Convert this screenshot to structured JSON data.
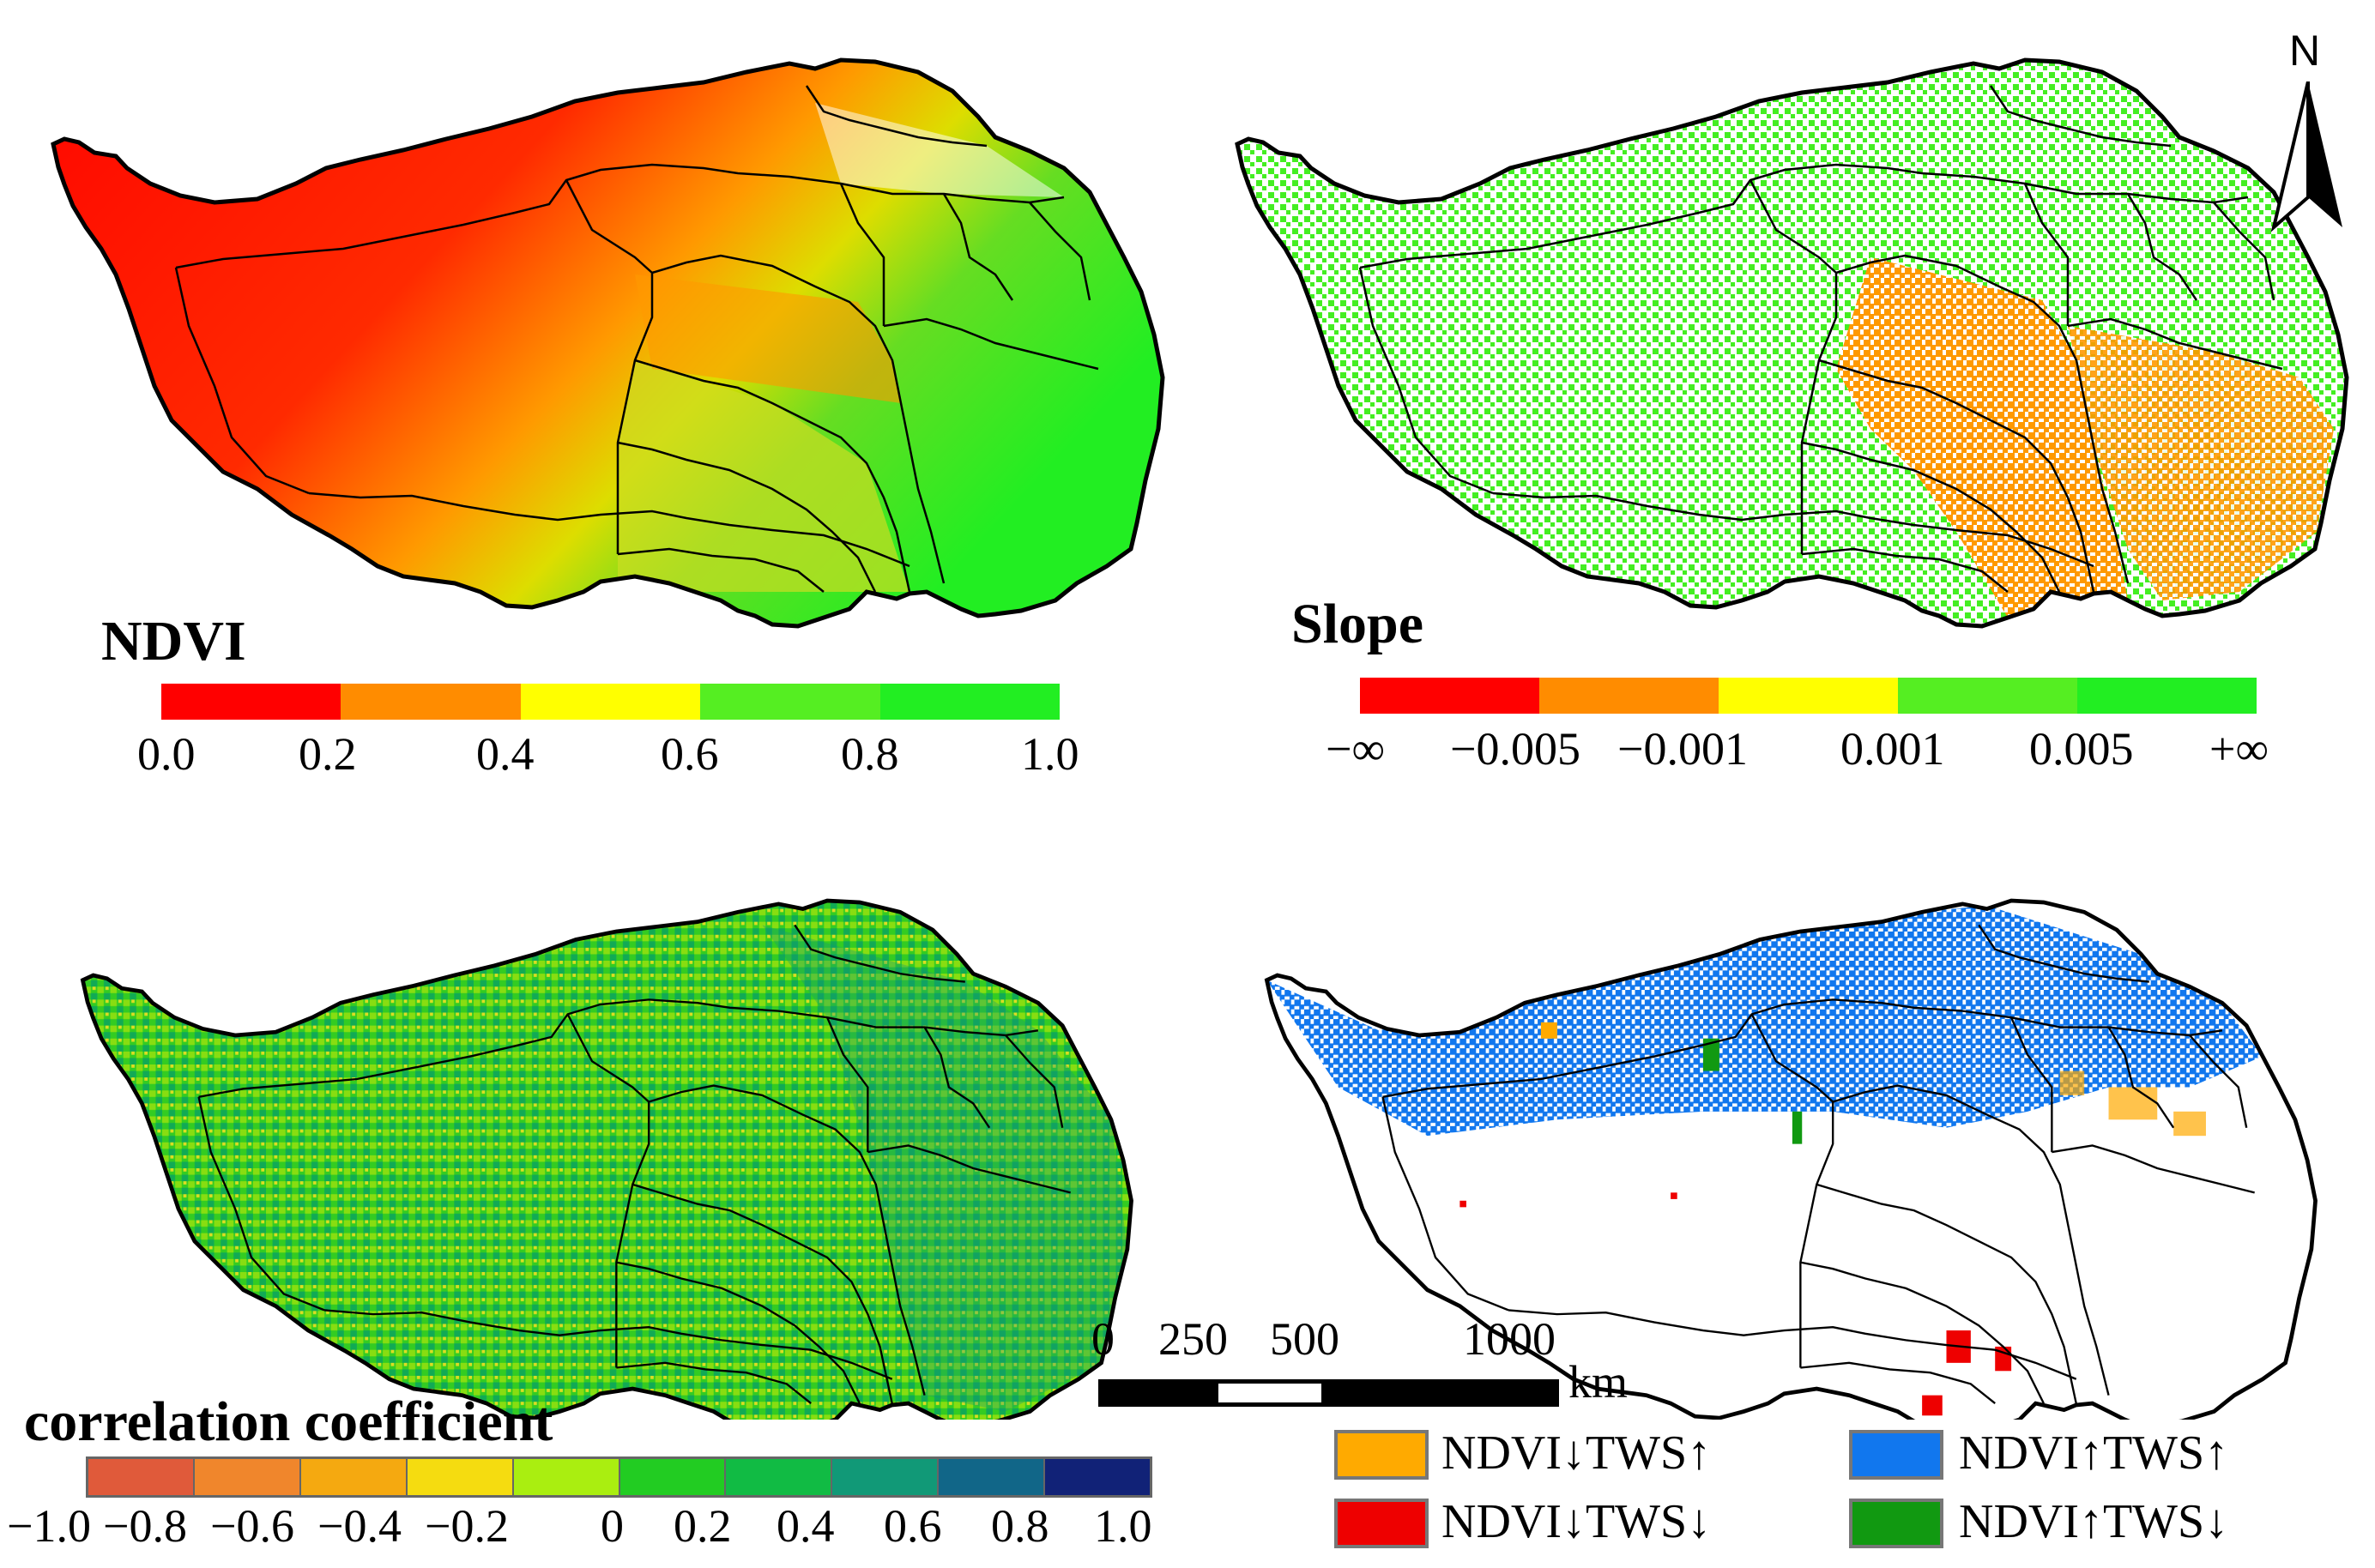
{
  "colors": {
    "ndvi_bins": [
      "#ff0000",
      "#ff8c00",
      "#ffff00",
      "#55ee22",
      "#22ee22"
    ],
    "slope_bins": [
      "#ff0000",
      "#ff8c00",
      "#ffff00",
      "#55ee22",
      "#22ee22"
    ],
    "corr_bins": [
      "#e05a3a",
      "#f0862c",
      "#f5a910",
      "#f5dc10",
      "#aaee10",
      "#22cc22",
      "#11bb44",
      "#119977",
      "#116688",
      "#112277"
    ],
    "category": {
      "ndvi_down_tws_up": "#ffaa00",
      "ndvi_down_tws_down": "#ee0000",
      "ndvi_up_tws_up": "#1177ee",
      "ndvi_up_tws_down": "#119911"
    },
    "outline": "#000000",
    "white_gap": "#ffffff"
  },
  "panels": {
    "ndvi": {
      "legend_title": "NDVI",
      "ticks": [
        "0.0",
        "0.2",
        "0.4",
        "0.6",
        "0.8",
        "1.0"
      ]
    },
    "slope": {
      "legend_title": "Slope",
      "ticks": [
        "−∞",
        "−0.005",
        "−0.001",
        "0.001",
        "0.005",
        "+∞"
      ]
    },
    "correlation": {
      "legend_title": "correlation coefficient",
      "ticks": [
        "−1.0",
        "−0.8",
        "−0.6",
        "−0.4",
        "−0.2",
        "0",
        "0.2",
        "0.4",
        "0.6",
        "0.8",
        "1.0"
      ]
    },
    "category": {
      "legend_items": [
        {
          "label": "NDVI↓TWS↑",
          "color_key": "ndvi_down_tws_up"
        },
        {
          "label": "NDVI↑TWS↑",
          "color_key": "ndvi_up_tws_up"
        },
        {
          "label": "NDVI↓TWS↓",
          "color_key": "ndvi_down_tws_down"
        },
        {
          "label": "NDVI↑TWS↓",
          "color_key": "ndvi_up_tws_down"
        }
      ]
    }
  },
  "north_arrow": {
    "label": "N"
  },
  "scale_bar": {
    "ticks": [
      "0",
      "250",
      "500",
      "1000"
    ],
    "unit": "km"
  }
}
